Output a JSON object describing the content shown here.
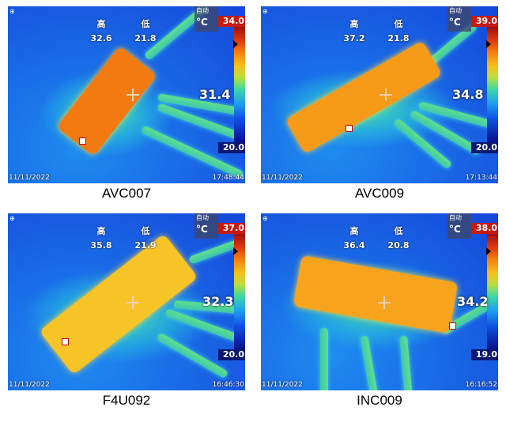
{
  "panels": [
    {
      "caption": "AVC007",
      "high_label": "高",
      "low_label": "低",
      "high": "32.6",
      "low": "21.8",
      "mode": "自动",
      "unit": "°C",
      "scale_max": "34.0",
      "scale_min": "20.0",
      "center_temp": "31.4",
      "date": "11/11/2022",
      "time": "17:48:44",
      "device_color": "#f37a10"
    },
    {
      "caption": "AVC009",
      "high_label": "高",
      "low_label": "低",
      "high": "37.2",
      "low": "21.8",
      "mode": "自动",
      "unit": "°C",
      "scale_max": "39.0",
      "scale_min": "20.0",
      "center_temp": "34.8",
      "date": "11/11/2022",
      "time": "17:13:44",
      "device_color": "#f79a18"
    },
    {
      "caption": "F4U092",
      "high_label": "高",
      "low_label": "低",
      "high": "35.8",
      "low": "21.9",
      "mode": "自动",
      "unit": "°C",
      "scale_max": "37.0",
      "scale_min": "20.0",
      "center_temp": "32.3",
      "date": "11/11/2022",
      "time": "16:46:30",
      "device_color": "#f7c428"
    },
    {
      "caption": "INC009",
      "high_label": "高",
      "low_label": "低",
      "high": "36.4",
      "low": "20.8",
      "mode": "自动",
      "unit": "°C",
      "scale_max": "38.0",
      "scale_min": "19.0",
      "center_temp": "34.2",
      "date": "11/11/2022",
      "time": "16:16:52",
      "device_color": "#f7a41c"
    }
  ]
}
